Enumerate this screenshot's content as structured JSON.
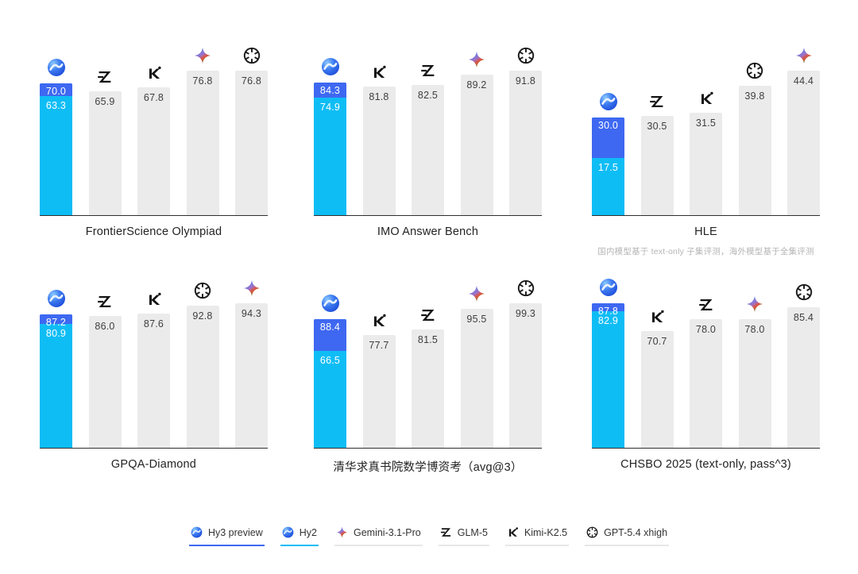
{
  "page": {
    "background": "#ffffff"
  },
  "colors": {
    "hy3_accent": "#3e68f1",
    "hy2_accent": "#0fbdf5",
    "bar_gray": "#ebebeb",
    "bar_label_dark": "#3e3e3e",
    "bar_label_light": "#ffffff",
    "axis": "#2e2e2e",
    "title_text": "#232323",
    "footnote_text": "#b5b5b5",
    "legend_underline_gray": "#e7e7e7"
  },
  "chart_data": [
    {
      "type": "bar",
      "title": "FrontierScience Olympiad",
      "footnote": "",
      "ylim": [
        0,
        76.8
      ],
      "bars": [
        {
          "icon": "hunyuan-icon",
          "model": "Hy3 preview / Hy2",
          "hy3_value": 70.0,
          "hy2_value": 63.3
        },
        {
          "icon": "glm-icon",
          "model": "GLM-5",
          "value": 65.9
        },
        {
          "icon": "kimi-icon",
          "model": "Kimi-K2.5",
          "value": 67.8
        },
        {
          "icon": "gemini-icon",
          "model": "Gemini-3.1-Pro",
          "value": 76.8
        },
        {
          "icon": "openai-icon",
          "model": "GPT-5.4 xhigh",
          "value": 76.8
        }
      ]
    },
    {
      "type": "bar",
      "title": "IMO Answer Bench",
      "footnote": "",
      "ylim": [
        0,
        91.8
      ],
      "bars": [
        {
          "icon": "hunyuan-icon",
          "model": "Hy3 preview / Hy2",
          "hy3_value": 84.3,
          "hy2_value": 74.9
        },
        {
          "icon": "kimi-icon",
          "model": "Kimi-K2.5",
          "value": 81.8
        },
        {
          "icon": "glm-icon",
          "model": "GLM-5",
          "value": 82.5
        },
        {
          "icon": "gemini-icon",
          "model": "Gemini-3.1-Pro",
          "value": 89.2
        },
        {
          "icon": "openai-icon",
          "model": "GPT-5.4 xhigh",
          "value": 91.8
        }
      ]
    },
    {
      "type": "bar",
      "title": "HLE",
      "footnote": "国内模型基于 text-only 子集评测，海外模型基于全集评测",
      "ylim": [
        0,
        44.4
      ],
      "bars": [
        {
          "icon": "hunyuan-icon",
          "model": "Hy3 preview / Hy2",
          "hy3_value": 30.0,
          "hy2_value": 17.5
        },
        {
          "icon": "glm-icon",
          "model": "GLM-5",
          "value": 30.5
        },
        {
          "icon": "kimi-icon",
          "model": "Kimi-K2.5",
          "value": 31.5
        },
        {
          "icon": "openai-icon",
          "model": "GPT-5.4 xhigh",
          "value": 39.8
        },
        {
          "icon": "gemini-icon",
          "model": "Gemini-3.1-Pro",
          "value": 44.4
        }
      ]
    },
    {
      "type": "bar",
      "title": "GPQA-Diamond",
      "footnote": "",
      "ylim": [
        0,
        94.3
      ],
      "bars": [
        {
          "icon": "hunyuan-icon",
          "model": "Hy3 preview / Hy2",
          "hy3_value": 87.2,
          "hy2_value": 80.9
        },
        {
          "icon": "glm-icon",
          "model": "GLM-5",
          "value": 86.0
        },
        {
          "icon": "kimi-icon",
          "model": "Kimi-K2.5",
          "value": 87.6
        },
        {
          "icon": "openai-icon",
          "model": "GPT-5.4 xhigh",
          "value": 92.8
        },
        {
          "icon": "gemini-icon",
          "model": "Gemini-3.1-Pro",
          "value": 94.3
        }
      ]
    },
    {
      "type": "bar",
      "title": "清华求真书院数学博资考（avg@3）",
      "footnote": "",
      "ylim": [
        0,
        99.3
      ],
      "bars": [
        {
          "icon": "hunyuan-icon",
          "model": "Hy3 preview / Hy2",
          "hy3_value": 88.4,
          "hy2_value": 66.5
        },
        {
          "icon": "kimi-icon",
          "model": "Kimi-K2.5",
          "value": 77.7
        },
        {
          "icon": "glm-icon",
          "model": "GLM-5",
          "value": 81.5
        },
        {
          "icon": "gemini-icon",
          "model": "Gemini-3.1-Pro",
          "value": 95.5
        },
        {
          "icon": "openai-icon",
          "model": "GPT-5.4 xhigh",
          "value": 99.3
        }
      ]
    },
    {
      "type": "bar",
      "title": "CHSBO 2025 (text-only, pass^3)",
      "footnote": "",
      "ylim": [
        0,
        87.8
      ],
      "bars": [
        {
          "icon": "hunyuan-icon",
          "model": "Hy3 preview / Hy2",
          "hy3_value": 87.8,
          "hy2_value": 82.9
        },
        {
          "icon": "kimi-icon",
          "model": "Kimi-K2.5",
          "value": 70.7
        },
        {
          "icon": "glm-icon",
          "model": "GLM-5",
          "value": 78.0
        },
        {
          "icon": "gemini-icon",
          "model": "Gemini-3.1-Pro",
          "value": 78.0
        },
        {
          "icon": "openai-icon",
          "model": "GPT-5.4 xhigh",
          "value": 85.4
        }
      ]
    }
  ],
  "legend": {
    "items": [
      {
        "label": "Hy3 preview",
        "icon": "hunyuan-icon",
        "underline": "#3e68f1"
      },
      {
        "label": "Hy2",
        "icon": "hunyuan-icon",
        "underline": "#0fbdf5"
      },
      {
        "label": "Gemini-3.1-Pro",
        "icon": "gemini-icon",
        "underline": "#e7e7e7"
      },
      {
        "label": "GLM-5",
        "icon": "glm-icon",
        "underline": "#e7e7e7"
      },
      {
        "label": "Kimi-K2.5",
        "icon": "kimi-icon",
        "underline": "#e7e7e7"
      },
      {
        "label": "GPT-5.4 xhigh",
        "icon": "openai-icon",
        "underline": "#e7e7e7"
      }
    ]
  }
}
